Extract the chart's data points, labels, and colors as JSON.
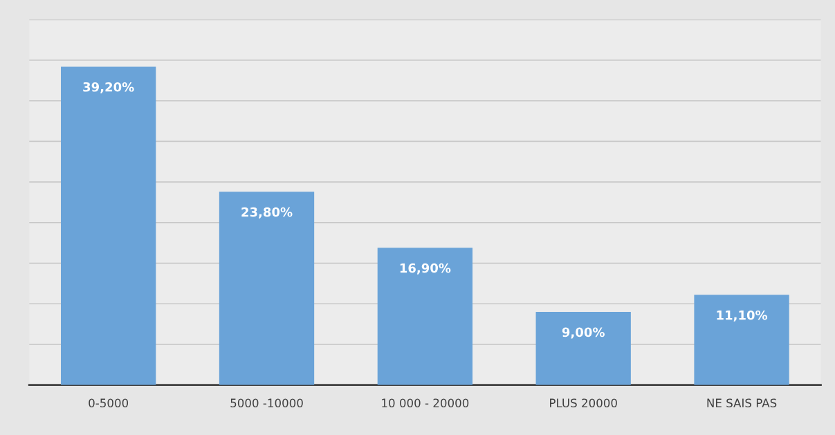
{
  "chart_data": {
    "type": "bar",
    "categories": [
      "0-5000",
      "5000 -10000",
      "10 000 - 20000",
      "PLUS 20000",
      "NE SAIS PAS"
    ],
    "values": [
      39.2,
      23.8,
      16.9,
      9.0,
      11.1
    ],
    "value_labels": [
      "39,20%",
      "23,80%",
      "16,90%",
      "9,00%",
      "11,10%"
    ],
    "color": "#6aa3d8",
    "ylim": [
      0,
      45
    ],
    "yticks": [
      {
        "value": 0,
        "label": null
      },
      {
        "value": 5,
        "label": null
      },
      {
        "value": 10,
        "label": null
      },
      {
        "value": 15,
        "label": null
      },
      {
        "value": 20,
        "label": null
      },
      {
        "value": 25,
        "label": null
      },
      {
        "value": 30,
        "label": null
      },
      {
        "value": 35,
        "label": null
      },
      {
        "value": 40,
        "label": null
      },
      {
        "value": 45,
        "label": null
      }
    ],
    "grid": "y",
    "tick_labels": "x"
  }
}
